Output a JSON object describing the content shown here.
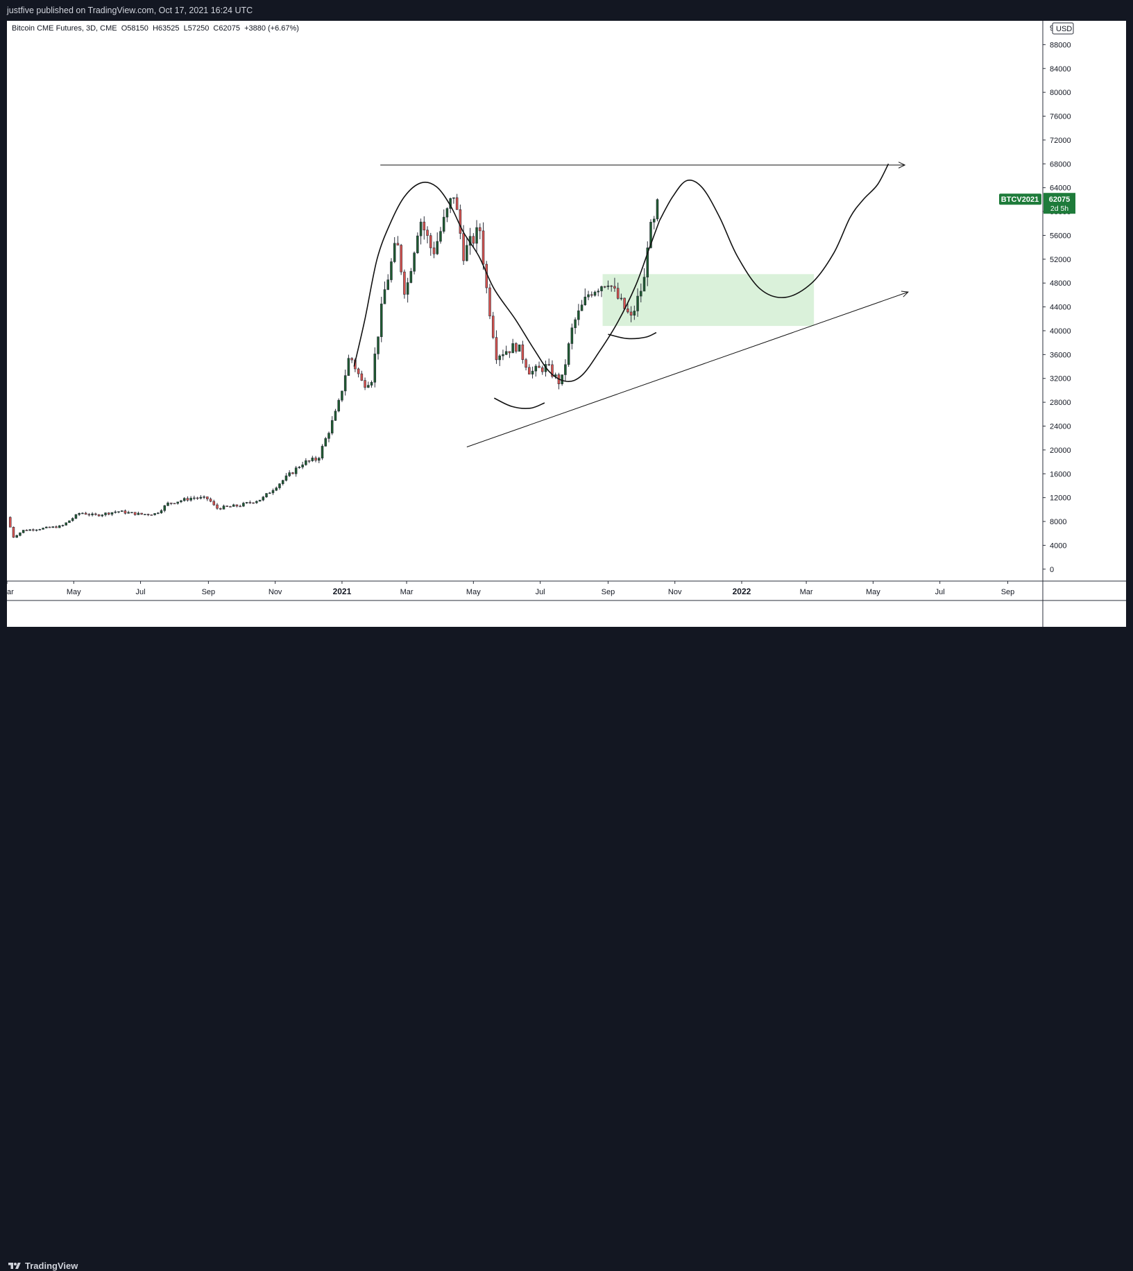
{
  "header": {
    "publish_line": "justfive published on TradingView.com, Oct 17, 2021 16:24 UTC"
  },
  "footer": {
    "brand": "TradingView"
  },
  "chart_data": {
    "type": "candlestick",
    "symbol_line": "Bitcoin CME Futures, 3D, CME  O58150  H63525  L57250  C62075  +3880 (+6.67%)",
    "ohlc": {
      "open": 58150,
      "high": 63525,
      "low": 57250,
      "close": 62075,
      "change": "+3880 (+6.67%)"
    },
    "currency": "USD",
    "price_tag": {
      "label": "BTCV2021",
      "value": "62075",
      "countdown": "2d 5h",
      "color": "#1e7b3a"
    },
    "y_ticks": [
      0,
      4000,
      8000,
      12000,
      16000,
      20000,
      24000,
      28000,
      32000,
      36000,
      40000,
      44000,
      48000,
      52000,
      56000,
      60000,
      64000,
      68000,
      72000,
      76000,
      80000,
      84000,
      88000
    ],
    "y_top_partial": "9",
    "ylim": [
      -2000,
      92000
    ],
    "x_ticks": [
      {
        "label": "ar",
        "bold": false,
        "d": "2020-03-01"
      },
      {
        "label": "May",
        "bold": false,
        "d": "2020-05-01"
      },
      {
        "label": "Jul",
        "bold": false,
        "d": "2020-07-01"
      },
      {
        "label": "Sep",
        "bold": false,
        "d": "2020-09-01"
      },
      {
        "label": "Nov",
        "bold": false,
        "d": "2020-11-01"
      },
      {
        "label": "2021",
        "bold": true,
        "d": "2021-01-01"
      },
      {
        "label": "Mar",
        "bold": false,
        "d": "2021-03-01"
      },
      {
        "label": "May",
        "bold": false,
        "d": "2021-05-01"
      },
      {
        "label": "Jul",
        "bold": false,
        "d": "2021-07-01"
      },
      {
        "label": "Sep",
        "bold": false,
        "d": "2021-09-01"
      },
      {
        "label": "Nov",
        "bold": false,
        "d": "2021-11-01"
      },
      {
        "label": "2022",
        "bold": true,
        "d": "2022-01-01"
      },
      {
        "label": "Mar",
        "bold": false,
        "d": "2022-03-01"
      },
      {
        "label": "May",
        "bold": false,
        "d": "2022-05-01"
      },
      {
        "label": "Jul",
        "bold": false,
        "d": "2022-07-01"
      },
      {
        "label": "Sep",
        "bold": false,
        "d": "2022-09-01"
      }
    ],
    "xlim": [
      "2020-03-01",
      "2022-10-03"
    ],
    "colors": {
      "up": "#1e5b30",
      "down": "#d9534f",
      "wick": "#2a2e39",
      "annotation": "#111111",
      "zone": "#d6efd6"
    },
    "candle_period_days": 3,
    "close_path": [
      {
        "d": "2020-03-01",
        "p": 8700
      },
      {
        "d": "2020-03-07",
        "p": 5400
      },
      {
        "d": "2020-03-16",
        "p": 6500
      },
      {
        "d": "2020-04-01",
        "p": 6800
      },
      {
        "d": "2020-04-20",
        "p": 7200
      },
      {
        "d": "2020-05-07",
        "p": 9500
      },
      {
        "d": "2020-05-20",
        "p": 9000
      },
      {
        "d": "2020-06-10",
        "p": 9700
      },
      {
        "d": "2020-07-01",
        "p": 9200
      },
      {
        "d": "2020-07-15",
        "p": 9300
      },
      {
        "d": "2020-07-26",
        "p": 11000
      },
      {
        "d": "2020-08-18",
        "p": 12000
      },
      {
        "d": "2020-09-01",
        "p": 11800
      },
      {
        "d": "2020-09-08",
        "p": 10200
      },
      {
        "d": "2020-09-30",
        "p": 10700
      },
      {
        "d": "2020-10-20",
        "p": 11800
      },
      {
        "d": "2020-11-01",
        "p": 13800
      },
      {
        "d": "2020-11-15",
        "p": 16000
      },
      {
        "d": "2020-11-26",
        "p": 17800
      },
      {
        "d": "2020-12-10",
        "p": 18500
      },
      {
        "d": "2020-12-28",
        "p": 27000
      },
      {
        "d": "2021-01-08",
        "p": 36000
      },
      {
        "d": "2021-01-20",
        "p": 31000
      },
      {
        "d": "2021-01-28",
        "p": 32000
      },
      {
        "d": "2021-02-08",
        "p": 46000
      },
      {
        "d": "2021-02-20",
        "p": 55000
      },
      {
        "d": "2021-02-28",
        "p": 46000
      },
      {
        "d": "2021-03-13",
        "p": 59000
      },
      {
        "d": "2021-03-25",
        "p": 53000
      },
      {
        "d": "2021-04-13",
        "p": 63000
      },
      {
        "d": "2021-04-22",
        "p": 53000
      },
      {
        "d": "2021-05-07",
        "p": 57000
      },
      {
        "d": "2021-05-13",
        "p": 47000
      },
      {
        "d": "2021-05-22",
        "p": 36000
      },
      {
        "d": "2021-06-10",
        "p": 37500
      },
      {
        "d": "2021-06-22",
        "p": 33000
      },
      {
        "d": "2021-07-07",
        "p": 34000
      },
      {
        "d": "2021-07-20",
        "p": 31000
      },
      {
        "d": "2021-07-31",
        "p": 41000
      },
      {
        "d": "2021-08-15",
        "p": 46500
      },
      {
        "d": "2021-09-01",
        "p": 48500
      },
      {
        "d": "2021-09-08",
        "p": 46000
      },
      {
        "d": "2021-09-22",
        "p": 42000
      },
      {
        "d": "2021-10-04",
        "p": 48500
      },
      {
        "d": "2021-10-07",
        "p": 55000
      },
      {
        "d": "2021-10-11",
        "p": 57500
      },
      {
        "d": "2021-10-14",
        "p": 58150
      },
      {
        "d": "2021-10-17",
        "p": 62075
      }
    ],
    "annotations": {
      "horizontal_arrow": {
        "from": {
          "d": "2021-02-05",
          "p": 67800
        },
        "to": {
          "d": "2022-05-30",
          "p": 67800
        }
      },
      "rising_trendline": {
        "from": {
          "d": "2021-04-25",
          "p": 20500
        },
        "to": {
          "d": "2022-06-02",
          "p": 46500
        }
      },
      "demand_zone": {
        "d_from": "2021-08-27",
        "d_to": "2022-03-08",
        "p_from": 40800,
        "p_to": 49500
      },
      "curve_past": [
        {
          "d": "2021-01-12",
          "p": 34000
        },
        {
          "d": "2021-01-22",
          "p": 42000
        },
        {
          "d": "2021-02-02",
          "p": 52000
        },
        {
          "d": "2021-02-14",
          "p": 58000
        },
        {
          "d": "2021-02-27",
          "p": 62500
        },
        {
          "d": "2021-03-14",
          "p": 64800
        },
        {
          "d": "2021-03-28",
          "p": 64200
        },
        {
          "d": "2021-04-10",
          "p": 61000
        },
        {
          "d": "2021-04-22",
          "p": 56500
        },
        {
          "d": "2021-05-06",
          "p": 52500
        },
        {
          "d": "2021-05-20",
          "p": 47000
        },
        {
          "d": "2021-06-08",
          "p": 42000
        },
        {
          "d": "2021-06-25",
          "p": 37000
        },
        {
          "d": "2021-07-10",
          "p": 33000
        },
        {
          "d": "2021-07-25",
          "p": 31500
        },
        {
          "d": "2021-08-08",
          "p": 32500
        },
        {
          "d": "2021-08-24",
          "p": 36500
        },
        {
          "d": "2021-09-10",
          "p": 41500
        },
        {
          "d": "2021-09-26",
          "p": 47500
        },
        {
          "d": "2021-10-08",
          "p": 53500
        },
        {
          "d": "2021-10-18",
          "p": 58500
        }
      ],
      "curve_projection": [
        {
          "d": "2021-10-18",
          "p": 58500
        },
        {
          "d": "2021-10-30",
          "p": 62500
        },
        {
          "d": "2021-11-12",
          "p": 65200
        },
        {
          "d": "2021-11-26",
          "p": 64000
        },
        {
          "d": "2021-12-12",
          "p": 59000
        },
        {
          "d": "2021-12-28",
          "p": 52500
        },
        {
          "d": "2022-01-18",
          "p": 47000
        },
        {
          "d": "2022-02-10",
          "p": 45600
        },
        {
          "d": "2022-03-06",
          "p": 48000
        },
        {
          "d": "2022-03-26",
          "p": 53000
        },
        {
          "d": "2022-04-10",
          "p": 59000
        },
        {
          "d": "2022-04-22",
          "p": 62000
        },
        {
          "d": "2022-05-05",
          "p": 64500
        },
        {
          "d": "2022-05-15",
          "p": 68000
        }
      ],
      "base_arc_1": [
        {
          "d": "2021-05-20",
          "p": 28700
        },
        {
          "d": "2021-06-05",
          "p": 27300
        },
        {
          "d": "2021-06-22",
          "p": 27000
        },
        {
          "d": "2021-07-05",
          "p": 27900
        }
      ],
      "base_arc_2": [
        {
          "d": "2021-09-01",
          "p": 39400
        },
        {
          "d": "2021-09-18",
          "p": 38700
        },
        {
          "d": "2021-10-05",
          "p": 38900
        },
        {
          "d": "2021-10-15",
          "p": 39700
        }
      ]
    }
  }
}
